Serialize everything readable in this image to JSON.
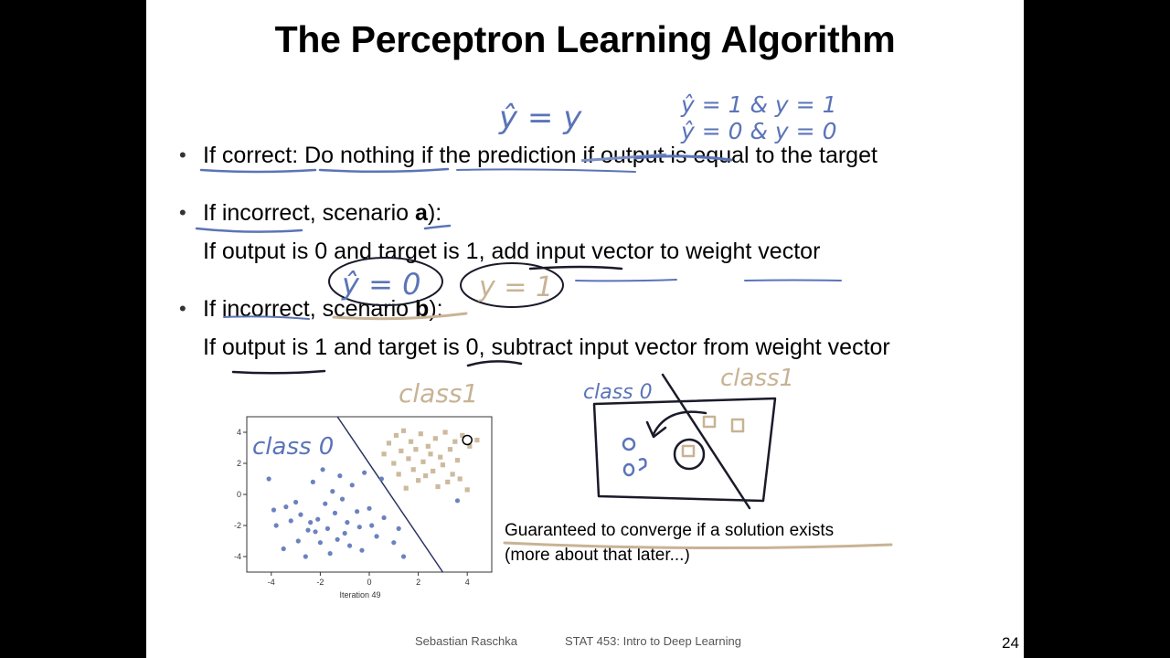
{
  "slide": {
    "title": "The Perceptron Learning Algorithm",
    "bullets": [
      {
        "pre": "If correct: Do nothing if the prediction ",
        "struck": "if output",
        "post": " is equal to the target"
      },
      {
        "line1_pre": "If incorrect, scenario ",
        "line1_bold": "a",
        "line1_post": "):",
        "line2": "If output is 0 and target is 1, add input vector to weight vector"
      },
      {
        "line1_pre": "If incorrect, scenario ",
        "line1_bold": "b",
        "line1_post": "):",
        "line2": "If output is 1 and target is 0, subtract input vector from weight vector"
      }
    ],
    "note_line1": "Guaranteed to converge if a solution exists",
    "note_line2": "(more about that later...)",
    "footer_author": "Sebastian Raschka",
    "footer_course": "STAT 453: Intro to Deep Learning",
    "page_number": "24"
  },
  "annotations": {
    "yhat_eq_y": "ŷ = y",
    "case1": "ŷ = 1  &  y = 1",
    "case2": "ŷ = 0  &  y = 0",
    "circle_a": "ŷ = 0",
    "circle_b": "y = 1",
    "class1_top": "class1",
    "class0_plot": "class 0",
    "class0_sketch": "class 0",
    "class1_sketch": "class1",
    "ink_blue": "#5b74b8",
    "ink_tan": "#c8b394"
  },
  "chart_data": {
    "type": "scatter",
    "xlabel": "Iteration 49",
    "ylabel": "",
    "title": "",
    "xlim": [
      -5,
      5
    ],
    "ylim": [
      -5,
      5
    ],
    "xticks": [
      -4,
      -2,
      0,
      2,
      4
    ],
    "yticks": [
      -4,
      -2,
      0,
      2,
      4
    ],
    "series": [
      {
        "marker": "circle",
        "color": "#5b74b8",
        "points": [
          [
            -4.1,
            1.0
          ],
          [
            -3.9,
            -1.0
          ],
          [
            -3.8,
            -2.0
          ],
          [
            -3.5,
            -3.5
          ],
          [
            -3.4,
            -0.8
          ],
          [
            -3.2,
            -1.7
          ],
          [
            -3.0,
            -0.5
          ],
          [
            -2.9,
            -3.0
          ],
          [
            -2.8,
            -1.3
          ],
          [
            -2.6,
            -4.0
          ],
          [
            -2.5,
            -2.3
          ],
          [
            -2.4,
            -1.8
          ],
          [
            -2.3,
            0.8
          ],
          [
            -2.2,
            -2.4
          ],
          [
            -2.1,
            -1.6
          ],
          [
            -2.0,
            -3.1
          ],
          [
            -1.9,
            1.6
          ],
          [
            -1.8,
            -0.6
          ],
          [
            -1.7,
            -2.2
          ],
          [
            -1.6,
            -3.8
          ],
          [
            -1.5,
            0.2
          ],
          [
            -1.4,
            -1.2
          ],
          [
            -1.3,
            -2.9
          ],
          [
            -1.2,
            1.2
          ],
          [
            -1.1,
            -0.3
          ],
          [
            -1.0,
            -2.5
          ],
          [
            -0.9,
            -1.8
          ],
          [
            -0.8,
            -3.3
          ],
          [
            -0.7,
            0.6
          ],
          [
            -0.5,
            -1.1
          ],
          [
            -0.4,
            -2.1
          ],
          [
            -0.3,
            -3.6
          ],
          [
            -0.2,
            1.4
          ],
          [
            0.0,
            -0.9
          ],
          [
            0.1,
            -2.0
          ],
          [
            0.3,
            -2.7
          ],
          [
            0.5,
            1.0
          ],
          [
            0.6,
            -1.5
          ],
          [
            1.0,
            -3.1
          ],
          [
            1.2,
            -2.2
          ],
          [
            1.4,
            -4.0
          ],
          [
            3.6,
            -0.4
          ]
        ]
      },
      {
        "marker": "square",
        "color": "#c8b394",
        "points": [
          [
            0.6,
            2.6
          ],
          [
            0.8,
            3.3
          ],
          [
            1.0,
            2.0
          ],
          [
            1.1,
            3.8
          ],
          [
            1.2,
            1.3
          ],
          [
            1.3,
            2.8
          ],
          [
            1.4,
            4.1
          ],
          [
            1.5,
            0.4
          ],
          [
            1.6,
            2.3
          ],
          [
            1.7,
            3.4
          ],
          [
            1.8,
            1.6
          ],
          [
            1.9,
            2.9
          ],
          [
            2.0,
            0.9
          ],
          [
            2.1,
            3.9
          ],
          [
            2.2,
            2.1
          ],
          [
            2.3,
            1.2
          ],
          [
            2.4,
            3.1
          ],
          [
            2.5,
            2.6
          ],
          [
            2.6,
            1.5
          ],
          [
            2.7,
            3.6
          ],
          [
            2.8,
            0.5
          ],
          [
            2.9,
            2.4
          ],
          [
            3.0,
            1.9
          ],
          [
            3.1,
            4.0
          ],
          [
            3.2,
            0.8
          ],
          [
            3.3,
            2.9
          ],
          [
            3.4,
            1.3
          ],
          [
            3.5,
            3.4
          ],
          [
            3.6,
            2.2
          ],
          [
            3.7,
            1.0
          ],
          [
            3.8,
            3.8
          ],
          [
            4.0,
            0.3
          ],
          [
            4.1,
            3.1
          ],
          [
            4.4,
            3.5
          ]
        ]
      }
    ],
    "decision_boundary": [
      [
        -1.3,
        5
      ],
      [
        3.0,
        -5
      ]
    ],
    "highlight_point": [
      4.0,
      3.5
    ]
  }
}
